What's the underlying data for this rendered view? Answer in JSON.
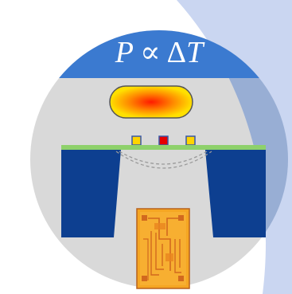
{
  "formula": {
    "lhs": "P",
    "relation": "∝",
    "delta": "Δ",
    "rhs": "T"
  },
  "colors": {
    "background": "#ffffff",
    "circle_fill": "#d9d9d9",
    "formula_band": "#3b7ad0",
    "formula_text": "#ffffff",
    "beam_light": "#c4d2f0",
    "beam_dark": "#8fa7cf",
    "substrate": "#0d3f90",
    "membrane": "#8ed16b",
    "sensor_yellow": "#ffd400",
    "heater_red": "#e60000",
    "sensor_border": "#3858a8",
    "heat_core": "#ff1a00",
    "heat_mid": "#ff8c00",
    "heat_edge": "#ffe000",
    "heat_outline": "#555555",
    "chip_orange": "#f5a623",
    "chip_dark": "#d2691e",
    "dashed_line": "#9a9a9a"
  },
  "icons": {
    "heat_spot": "hot-spot-icon",
    "chip": "microchip-icon"
  }
}
